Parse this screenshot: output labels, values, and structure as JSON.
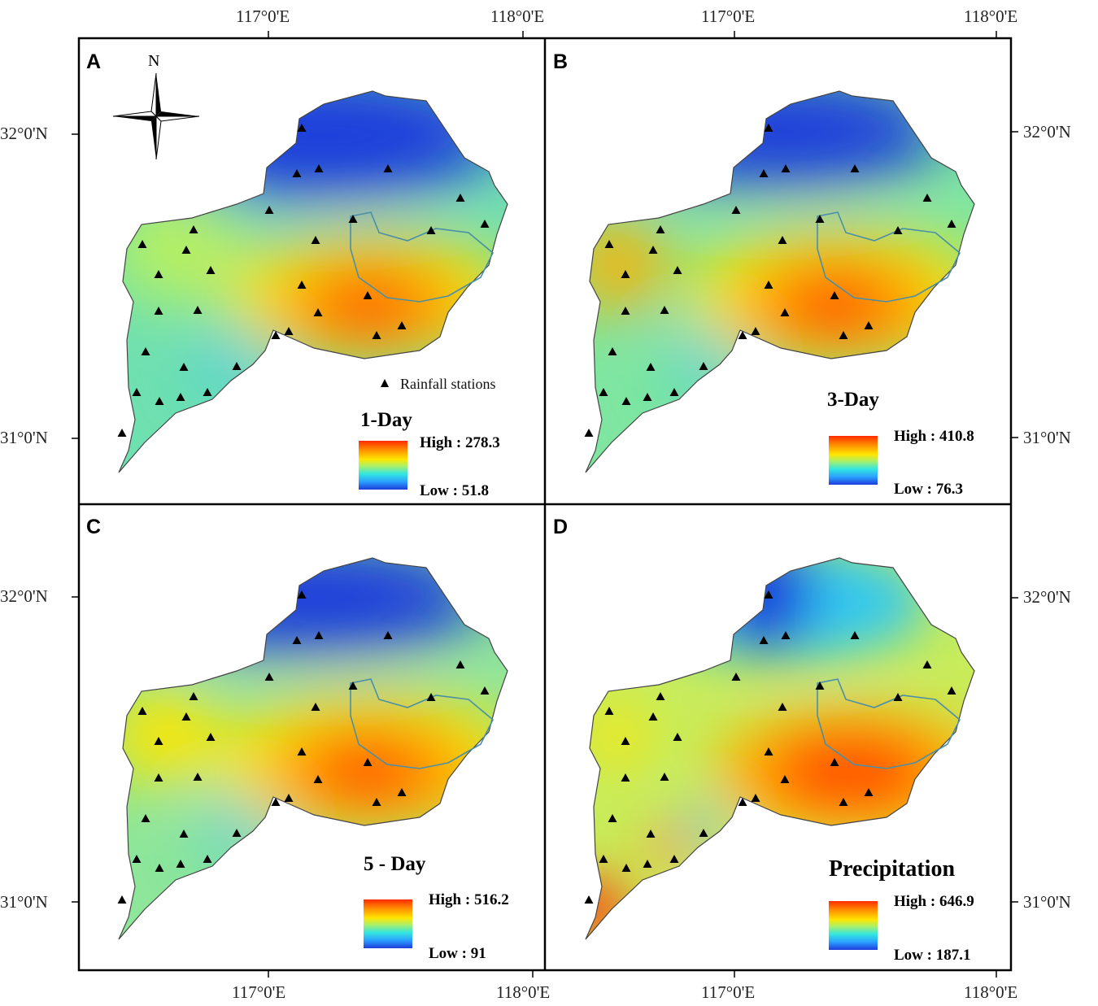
{
  "axes": {
    "lon_labels": [
      "117°0'E",
      "118°0'E"
    ],
    "lat_labels": [
      "32°0'N",
      "31°0'N"
    ]
  },
  "compass": {
    "north_label": "N"
  },
  "stations_legend": {
    "label": "Rainfall stations"
  },
  "panels": [
    {
      "id": "A",
      "title": "1-Day",
      "high": "High : 278.3",
      "low": "Low : 51.8"
    },
    {
      "id": "B",
      "title": "3-Day",
      "high": "High : 410.8",
      "low": "Low : 76.3"
    },
    {
      "id": "C",
      "title": "5 - Day",
      "high": "High : 516.2",
      "low": "Low : 91"
    },
    {
      "id": "D",
      "title": "Precipitation",
      "high": "High : 646.9",
      "low": "Low : 187.1"
    }
  ],
  "colors": {
    "high": "#ff2a00",
    "mid": "#ffe600",
    "low": "#1e3cdc",
    "river": "#4a8fa8",
    "station": "#000000"
  }
}
